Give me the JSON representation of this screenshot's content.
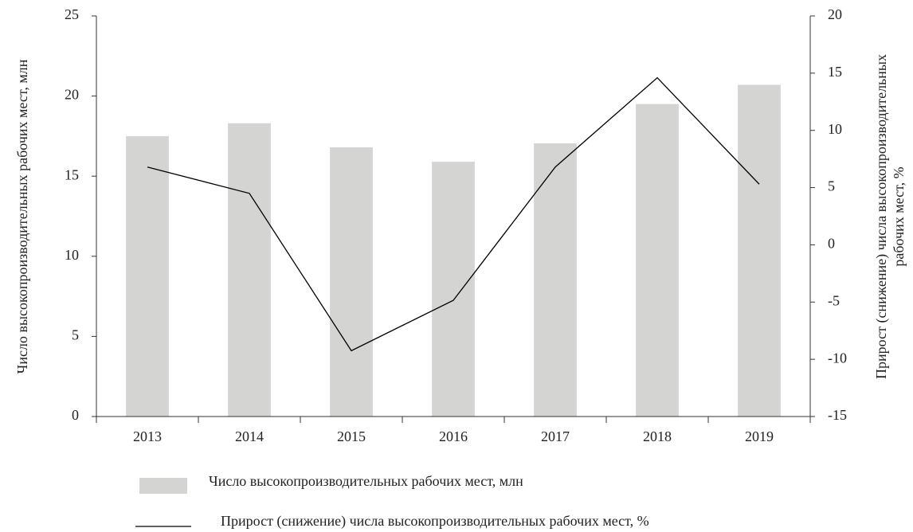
{
  "chart_data": {
    "type": "bar",
    "ylabel": "Число высокопроизводительных рабочих мест, млн",
    "y2label": [
      "Прирост (снижение) числа высокопроизводительных",
      "рабочих мест, %"
    ],
    "categories": [
      "2013",
      "2014",
      "2015",
      "2016",
      "2017",
      "2018",
      "2019"
    ],
    "series": [
      {
        "name": "Число высокопроизводительных рабочих мест, млн",
        "type": "bar",
        "color": "#d4d4d2",
        "values": [
          17.5,
          18.3,
          16.8,
          15.9,
          17.05,
          19.5,
          20.7
        ]
      },
      {
        "name": "Прирост (снижение) числа высокопроизводительных рабочих мест, %",
        "type": "line",
        "axis": "y2",
        "color": "#000000",
        "values": [
          6.8,
          4.5,
          -9.25,
          -4.85,
          6.8,
          14.6,
          5.3
        ]
      }
    ],
    "ylim": [
      0,
      25
    ],
    "yticks": [
      0,
      5,
      10,
      15,
      20,
      25
    ],
    "y2lim": [
      -15,
      20
    ],
    "y2ticks": [
      -15,
      -10,
      -5,
      0,
      5,
      10,
      15,
      20
    ],
    "grid": false
  }
}
